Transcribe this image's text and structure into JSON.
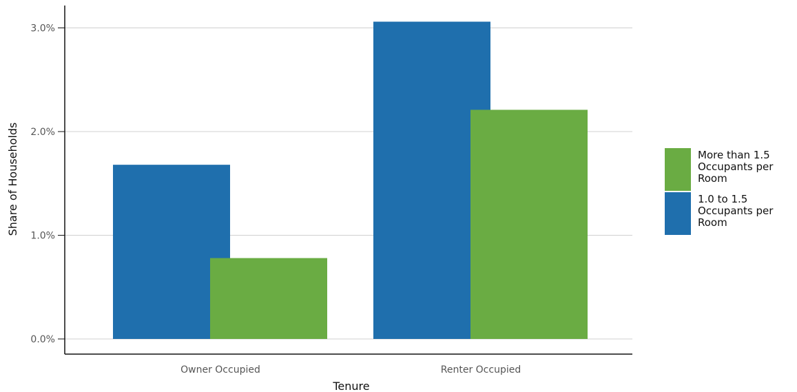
{
  "chart_data": {
    "type": "bar",
    "xlabel": "Tenure",
    "ylabel": "Share of Households",
    "categories": [
      "Owner Occupied",
      "Renter Occupied"
    ],
    "series": [
      {
        "name": "1.0 to 1.5 Occupants per Room",
        "color": "#1f6fad",
        "values": [
          1.68,
          3.06
        ]
      },
      {
        "name": "More than 1.5 Occupants per Room",
        "color": "#6aac43",
        "values": [
          0.78,
          2.21
        ]
      }
    ],
    "ylim": [
      0,
      3.3
    ],
    "yticks": [
      0,
      1,
      2,
      3
    ],
    "ytick_labels": [
      "0.0%",
      "1.0%",
      "2.0%",
      "3.0%"
    ],
    "grid": true,
    "legend_position": "right",
    "legend": [
      {
        "lines": [
          "More than 1.5",
          "Occupants per",
          "Room"
        ],
        "color": "#6aac43"
      },
      {
        "lines": [
          "1.0 to 1.5",
          "Occupants per",
          "Room"
        ],
        "color": "#1f6fad"
      }
    ]
  }
}
